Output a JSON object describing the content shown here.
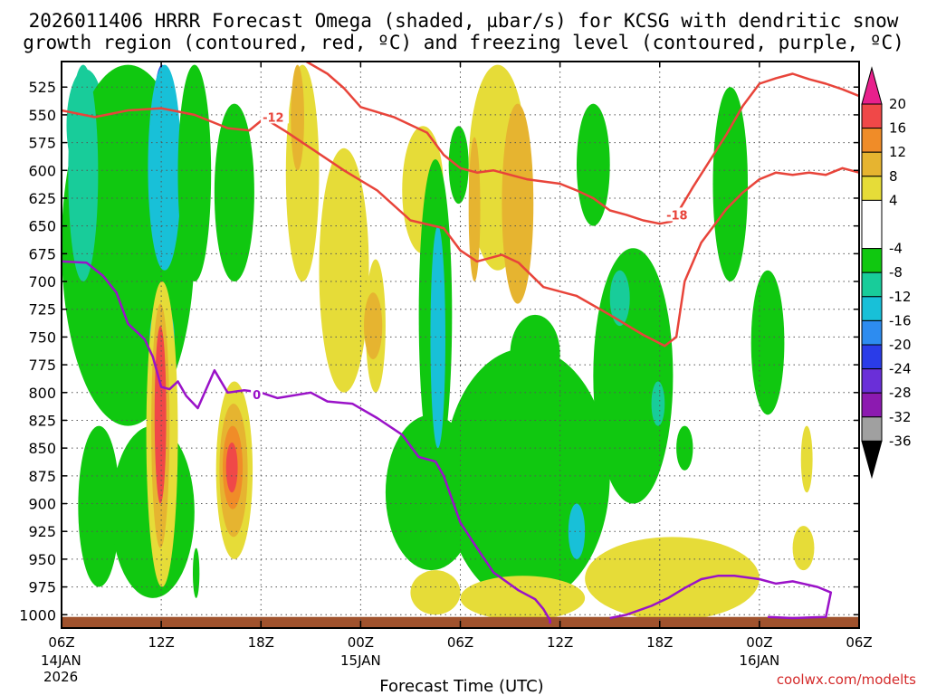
{
  "header": {
    "title_line1": "2026011406 HRRR Forecast Omega (shaded, µbar/s) for KCSG with dendritic snow",
    "title_line2": "growth region (contoured, red, ºC) and freezing level (contoured, purple, ºC)"
  },
  "footer": {
    "credit": "coolwx.com/modelts"
  },
  "colors": {
    "dgz_contour": "#e8443a",
    "freezing_contour": "#9a12c8",
    "ground": "#a0522d",
    "grid": "#555555"
  },
  "chart_data": {
    "type": "heatmap",
    "title": "2026011406 HRRR Forecast Omega (shaded, µbar/s) for KCSG with dendritic snow growth region (contoured, red, ºC) and freezing level (contoured, purple, ºC)",
    "xlabel": "Forecast Time (UTC)",
    "ylabel": "",
    "x_units": "forecast hour",
    "x_range": [
      0,
      48
    ],
    "y_range_hpa": [
      1012,
      502
    ],
    "x_ticks": [
      {
        "hour": 0,
        "line1": "06Z",
        "line2": "14JAN",
        "line3": "2026"
      },
      {
        "hour": 6,
        "line1": "12Z",
        "line2": "",
        "line3": ""
      },
      {
        "hour": 12,
        "line1": "18Z",
        "line2": "",
        "line3": ""
      },
      {
        "hour": 18,
        "line1": "00Z",
        "line2": "15JAN",
        "line3": ""
      },
      {
        "hour": 24,
        "line1": "06Z",
        "line2": "",
        "line3": ""
      },
      {
        "hour": 30,
        "line1": "12Z",
        "line2": "",
        "line3": ""
      },
      {
        "hour": 36,
        "line1": "18Z",
        "line2": "",
        "line3": ""
      },
      {
        "hour": 42,
        "line1": "00Z",
        "line2": "16JAN",
        "line3": ""
      },
      {
        "hour": 48,
        "line1": "06Z",
        "line2": "",
        "line3": ""
      }
    ],
    "y_ticks": [
      "525",
      "550",
      "575",
      "600",
      "625",
      "650",
      "675",
      "700",
      "725",
      "750",
      "775",
      "800",
      "825",
      "850",
      "875",
      "900",
      "925",
      "950",
      "975",
      "1000"
    ],
    "colorbar": {
      "labels": [
        "20",
        "16",
        "12",
        "8",
        "4",
        "-4",
        "-8",
        "-12",
        "-16",
        "-20",
        "-24",
        "-28",
        "-32",
        "-36"
      ],
      "bins": [
        {
          "lo": -40,
          "hi": -36,
          "color": "#000000"
        },
        {
          "lo": -36,
          "hi": -32,
          "color": "#a0a0a0"
        },
        {
          "lo": -32,
          "hi": -28,
          "color": "#8c1ab0"
        },
        {
          "lo": -28,
          "hi": -24,
          "color": "#6a2fd8"
        },
        {
          "lo": -24,
          "hi": -20,
          "color": "#2a3ce8"
        },
        {
          "lo": -20,
          "hi": -16,
          "color": "#2d8cf0"
        },
        {
          "lo": -16,
          "hi": -12,
          "color": "#18c0d8"
        },
        {
          "lo": -12,
          "hi": -8,
          "color": "#18cc9a"
        },
        {
          "lo": -8,
          "hi": -4,
          "color": "#10c810"
        },
        {
          "lo": -4,
          "hi": 4,
          "color": "#ffffff"
        },
        {
          "lo": 4,
          "hi": 8,
          "color": "#e6dc38"
        },
        {
          "lo": 8,
          "hi": 12,
          "color": "#e6b430"
        },
        {
          "lo": 12,
          "hi": 16,
          "color": "#f08c28"
        },
        {
          "lo": 16,
          "hi": 20,
          "color": "#f04848"
        },
        {
          "lo": 20,
          "hi": 24,
          "color": "#e8208c"
        }
      ]
    },
    "omega_blobs": [
      {
        "h0": 0.3,
        "h1": 2.6,
        "p0": 509,
        "p1": 610,
        "v": -10
      },
      {
        "h0": 0,
        "h1": 8,
        "p0": 505,
        "p1": 830,
        "v": -6
      },
      {
        "h0": 0.4,
        "h1": 2.2,
        "p0": 505,
        "p1": 700,
        "v": -9
      },
      {
        "h0": 1.0,
        "h1": 3.5,
        "p0": 830,
        "p1": 975,
        "v": -6
      },
      {
        "h0": 3,
        "h1": 8,
        "p0": 830,
        "p1": 985,
        "v": -6
      },
      {
        "h0": 5.6,
        "h1": 6.5,
        "p0": 505,
        "p1": 575,
        "v": -22
      },
      {
        "h0": 5.2,
        "h1": 7.2,
        "p0": 505,
        "p1": 690,
        "v": -14
      },
      {
        "h0": 5.3,
        "h1": 6.8,
        "p0": 720,
        "p1": 780,
        "v": -14
      },
      {
        "h0": 7,
        "h1": 9,
        "p0": 505,
        "p1": 700,
        "v": -6
      },
      {
        "h0": 9.2,
        "h1": 11.6,
        "p0": 540,
        "p1": 700,
        "v": -6
      },
      {
        "h0": 7.9,
        "h1": 8.3,
        "p0": 940,
        "p1": 985,
        "v": -6
      },
      {
        "h0": 5.1,
        "h1": 7,
        "p0": 700,
        "p1": 975,
        "v": 6
      },
      {
        "h0": 5.4,
        "h1": 6.5,
        "p0": 720,
        "p1": 940,
        "v": 10
      },
      {
        "h0": 5.6,
        "h1": 6.3,
        "p0": 740,
        "p1": 900,
        "v": 18
      },
      {
        "h0": 9.3,
        "h1": 11.5,
        "p0": 790,
        "p1": 950,
        "v": 6
      },
      {
        "h0": 9.5,
        "h1": 11.2,
        "p0": 810,
        "p1": 930,
        "v": 10
      },
      {
        "h0": 9.7,
        "h1": 10.9,
        "p0": 830,
        "p1": 905,
        "v": 14
      },
      {
        "h0": 9.9,
        "h1": 10.6,
        "p0": 845,
        "p1": 890,
        "v": 18
      },
      {
        "h0": 13.5,
        "h1": 15.5,
        "p0": 505,
        "p1": 700,
        "v": 6
      },
      {
        "h0": 13.8,
        "h1": 14.6,
        "p0": 505,
        "p1": 600,
        "v": 11
      },
      {
        "h0": 15.5,
        "h1": 18.5,
        "p0": 580,
        "p1": 800,
        "v": 6
      },
      {
        "h0": 18.3,
        "h1": 19.5,
        "p0": 680,
        "p1": 800,
        "v": 6
      },
      {
        "h0": 18.2,
        "h1": 19.3,
        "p0": 710,
        "p1": 770,
        "v": 10
      },
      {
        "h0": 20.5,
        "h1": 23,
        "p0": 560,
        "p1": 675,
        "v": 6
      },
      {
        "h0": 19.5,
        "h1": 25,
        "p0": 820,
        "p1": 960,
        "v": -6
      },
      {
        "h0": 21.5,
        "h1": 23.5,
        "p0": 590,
        "p1": 870,
        "v": -6
      },
      {
        "h0": 22.2,
        "h1": 23.1,
        "p0": 650,
        "p1": 850,
        "v": -14
      },
      {
        "h0": 24.5,
        "h1": 28,
        "p0": 505,
        "p1": 690,
        "v": 6
      },
      {
        "h0": 26.5,
        "h1": 28.4,
        "p0": 540,
        "p1": 720,
        "v": 10
      },
      {
        "h0": 24.5,
        "h1": 25.2,
        "p0": 570,
        "p1": 700,
        "v": 10
      },
      {
        "h0": 23.3,
        "h1": 24.5,
        "p0": 560,
        "p1": 630,
        "v": -6
      },
      {
        "h0": 23,
        "h1": 33,
        "p0": 760,
        "p1": 990,
        "v": -6
      },
      {
        "h0": 27,
        "h1": 30,
        "p0": 730,
        "p1": 800,
        "v": -6
      },
      {
        "h0": 31,
        "h1": 33,
        "p0": 540,
        "p1": 650,
        "v": -6
      },
      {
        "h0": 32,
        "h1": 36.8,
        "p0": 670,
        "p1": 900,
        "v": -6
      },
      {
        "h0": 33,
        "h1": 34.2,
        "p0": 690,
        "p1": 740,
        "v": -10
      },
      {
        "h0": 30.5,
        "h1": 31.5,
        "p0": 900,
        "p1": 950,
        "v": -14
      },
      {
        "h0": 39.2,
        "h1": 41.3,
        "p0": 525,
        "p1": 700,
        "v": -6
      },
      {
        "h0": 41.5,
        "h1": 43.5,
        "p0": 690,
        "p1": 820,
        "v": -6
      },
      {
        "h0": 37,
        "h1": 38,
        "p0": 830,
        "p1": 870,
        "v": -6
      },
      {
        "h0": 35.5,
        "h1": 36.3,
        "p0": 790,
        "p1": 830,
        "v": -10
      },
      {
        "h0": 21,
        "h1": 24,
        "p0": 960,
        "p1": 1000,
        "v": 6
      },
      {
        "h0": 24,
        "h1": 31.5,
        "p0": 965,
        "p1": 1005,
        "v": 6
      },
      {
        "h0": 31.5,
        "h1": 42,
        "p0": 930,
        "p1": 1005,
        "v": 6
      },
      {
        "h0": 44.5,
        "h1": 45.2,
        "p0": 830,
        "p1": 890,
        "v": 6
      },
      {
        "h0": 44,
        "h1": 45.3,
        "p0": 920,
        "p1": 960,
        "v": 6
      }
    ],
    "dgz_contours": [
      {
        "label": "-12",
        "label_at": [
          12.1,
          552
        ],
        "points": [
          [
            0,
            546
          ],
          [
            2,
            552
          ],
          [
            4,
            546
          ],
          [
            6,
            544
          ],
          [
            8,
            550
          ],
          [
            10,
            562
          ],
          [
            11.3,
            564
          ],
          [
            12.2,
            553
          ],
          [
            13.5,
            565
          ],
          [
            15,
            580
          ],
          [
            17,
            600
          ],
          [
            19,
            618
          ],
          [
            21,
            645
          ],
          [
            23,
            652
          ],
          [
            24,
            672
          ],
          [
            25,
            682
          ],
          [
            26.5,
            676
          ],
          [
            27.5,
            683
          ],
          [
            29,
            705
          ],
          [
            31,
            713
          ],
          [
            33,
            730
          ],
          [
            35,
            748
          ],
          [
            36.3,
            758
          ],
          [
            37,
            750
          ],
          [
            37.5,
            700
          ],
          [
            38.5,
            665
          ],
          [
            40,
            635
          ],
          [
            41,
            620
          ],
          [
            42,
            608
          ],
          [
            43,
            602
          ],
          [
            44,
            604
          ],
          [
            45,
            602
          ],
          [
            46,
            604
          ],
          [
            47,
            598
          ],
          [
            48,
            602
          ]
        ]
      },
      {
        "label": "-18",
        "label_at": [
          36.4,
          640
        ],
        "points": [
          [
            14.5,
            500
          ],
          [
            16,
            513
          ],
          [
            17,
            526
          ],
          [
            18,
            543
          ],
          [
            20,
            552
          ],
          [
            22,
            566
          ],
          [
            23,
            586
          ],
          [
            24,
            598
          ],
          [
            25,
            602
          ],
          [
            26,
            600
          ],
          [
            28,
            608
          ],
          [
            30,
            612
          ],
          [
            31,
            618
          ],
          [
            32,
            625
          ],
          [
            33,
            636
          ],
          [
            34,
            640
          ],
          [
            35,
            645
          ],
          [
            36,
            648
          ],
          [
            36.7,
            646
          ],
          [
            37.2,
            635
          ],
          [
            38,
            615
          ],
          [
            40,
            568
          ],
          [
            41,
            542
          ],
          [
            42,
            522
          ],
          [
            43,
            517
          ],
          [
            44,
            513
          ],
          [
            45,
            518
          ],
          [
            46,
            522
          ],
          [
            47,
            527
          ],
          [
            48,
            533
          ]
        ]
      }
    ],
    "freezing_contours": [
      {
        "label": "0",
        "label_at": [
          11.5,
          802
        ],
        "points": [
          [
            0,
            682
          ],
          [
            1.5,
            683
          ],
          [
            2.5,
            695
          ],
          [
            3.3,
            710
          ],
          [
            4,
            738
          ],
          [
            5,
            752
          ],
          [
            5.5,
            768
          ],
          [
            6,
            795
          ],
          [
            6.5,
            797
          ],
          [
            7,
            790
          ],
          [
            7.5,
            803
          ],
          [
            8.2,
            814
          ],
          [
            9.2,
            780
          ],
          [
            10,
            800
          ],
          [
            11,
            798
          ],
          [
            12,
            800
          ],
          [
            13,
            805
          ],
          [
            15,
            800
          ],
          [
            16,
            808
          ],
          [
            17.5,
            810
          ],
          [
            19,
            823
          ],
          [
            20.5,
            838
          ],
          [
            21.5,
            858
          ],
          [
            22.5,
            862
          ],
          [
            23,
            875
          ],
          [
            24,
            917
          ],
          [
            25,
            940
          ],
          [
            26,
            962
          ],
          [
            27.5,
            978
          ],
          [
            28.5,
            986
          ],
          [
            29,
            995
          ],
          [
            29.4,
            1005
          ],
          [
            29.4,
            1008
          ]
        ]
      },
      {
        "label": "",
        "label_at": null,
        "points": [
          [
            33,
            1003
          ],
          [
            34,
            1000
          ],
          [
            35.5,
            992
          ],
          [
            36.5,
            985
          ],
          [
            37.5,
            976
          ],
          [
            38.5,
            968
          ],
          [
            39.5,
            965
          ],
          [
            40.5,
            965
          ],
          [
            42,
            968
          ],
          [
            43,
            972
          ],
          [
            44,
            970
          ],
          [
            45.5,
            975
          ],
          [
            46.3,
            980
          ],
          [
            46,
            1002
          ],
          [
            44,
            1003
          ],
          [
            42.5,
            1002
          ]
        ]
      }
    ]
  }
}
